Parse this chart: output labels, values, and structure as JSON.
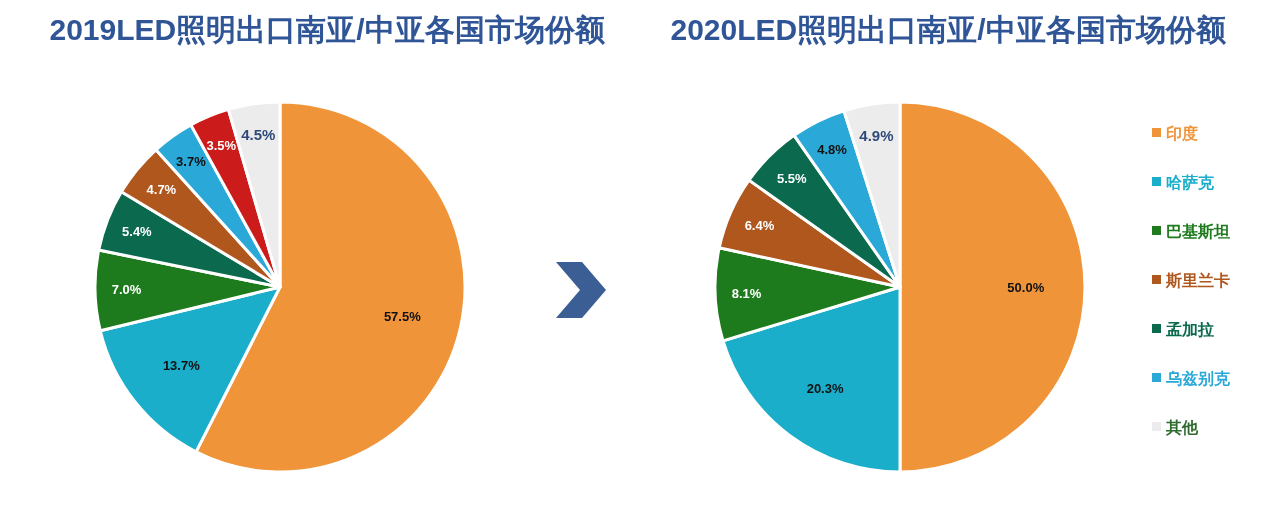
{
  "chart_data": [
    {
      "type": "pie",
      "title": "2019LED照明出口南亚/中亚各国市场份额",
      "categories": [
        null,
        null,
        null,
        null,
        null,
        null,
        null,
        null
      ],
      "values": [
        57.5,
        13.7,
        7.0,
        5.4,
        4.7,
        3.7,
        3.5,
        4.5
      ],
      "colors": [
        "#f0943a",
        "#1aaecb",
        "#1d7a1d",
        "#0b6a4e",
        "#b0571e",
        "#2aa8d8",
        "#cc1b1b",
        "#ececec"
      ],
      "value_labels": [
        "57.5%",
        "13.7%",
        "7.0%",
        "5.4%",
        "4.7%",
        "3.7%",
        "3.5%",
        "4.5%"
      ]
    },
    {
      "type": "pie",
      "title": "2020LED照明出口南亚/中亚各国市场份额",
      "categories": [
        "印度",
        "哈萨克",
        "巴基斯坦",
        "斯里兰卡",
        "孟加拉",
        "乌兹别克",
        "其他"
      ],
      "values": [
        50.0,
        20.3,
        8.1,
        6.4,
        5.5,
        4.8,
        4.9
      ],
      "colors": [
        "#f0943a",
        "#1aaecb",
        "#1d7a1d",
        "#b0571e",
        "#0b6a4e",
        "#2aa8d8",
        "#ececec"
      ],
      "value_labels": [
        "50.0%",
        "20.3%",
        "8.1%",
        "6.4%",
        "5.5%",
        "4.8%",
        "4.9%"
      ],
      "legend": "right"
    }
  ]
}
